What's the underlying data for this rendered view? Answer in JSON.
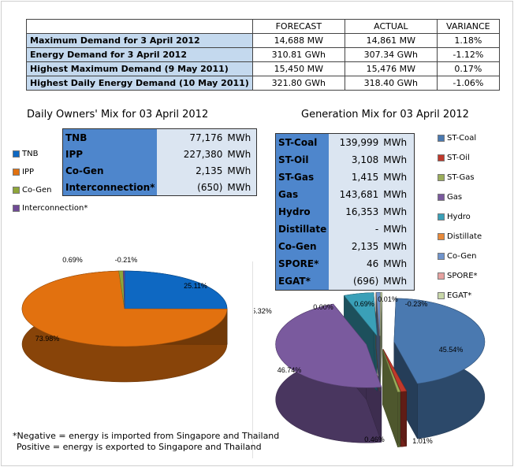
{
  "summary": {
    "headers": [
      "",
      "FORECAST",
      "ACTUAL",
      "VARIANCE"
    ],
    "rows": [
      {
        "label": "Maximum Demand for 3 April 2012",
        "forecast": "14,688  MW",
        "actual": "14,861  MW",
        "variance": "1.18%"
      },
      {
        "label": "Energy Demand for 3 April 2012",
        "forecast": "310.81  GWh",
        "actual": "307.34  GWh",
        "variance": "-1.12%"
      },
      {
        "label": "Highest Maximum Demand (9 May 2011)",
        "forecast": "15,450  MW",
        "actual": "15,476  MW",
        "variance": "0.17%"
      },
      {
        "label": "Highest Daily Energy Demand (10 May 2011)",
        "forecast": "321.80  GWh",
        "actual": "318.40  GWh",
        "variance": "-1.06%"
      }
    ]
  },
  "owners": {
    "title": "Daily Owners' Mix for 03 April 2012",
    "rows": [
      {
        "label": "TNB",
        "value": "77,176",
        "unit": "MWh"
      },
      {
        "label": "IPP",
        "value": "227,380",
        "unit": "MWh"
      },
      {
        "label": "Co-Gen",
        "value": "2,135",
        "unit": "MWh"
      },
      {
        "label": "Interconnection*",
        "value": "(650)",
        "unit": "MWh"
      }
    ],
    "legend": [
      "TNB",
      "IPP",
      "Co-Gen",
      "Interconnection*"
    ]
  },
  "generation": {
    "title": "Generation Mix for 03 April 2012",
    "rows": [
      {
        "label": "ST-Coal",
        "value": "139,999",
        "unit": "MWh"
      },
      {
        "label": "ST-Oil",
        "value": "3,108",
        "unit": "MWh"
      },
      {
        "label": "ST-Gas",
        "value": "1,415",
        "unit": "MWh"
      },
      {
        "label": "Gas",
        "value": "143,681",
        "unit": "MWh"
      },
      {
        "label": "Hydro",
        "value": "16,353",
        "unit": "MWh"
      },
      {
        "label": "Distillate",
        "value": "-",
        "unit": "MWh"
      },
      {
        "label": "Co-Gen",
        "value": "2,135",
        "unit": "MWh"
      },
      {
        "label": "SPORE*",
        "value": "46",
        "unit": "MWh"
      },
      {
        "label": "EGAT*",
        "value": "(696)",
        "unit": "MWh"
      }
    ],
    "legend": [
      "ST-Coal",
      "ST-Oil",
      "ST-Gas",
      "Gas",
      "Hydro",
      "Distillate",
      "Co-Gen",
      "SPORE*",
      "EGAT*"
    ]
  },
  "footnote": {
    "line1": "*Negative = energy is imported from Singapore and Thailand",
    "line2": "Positive = energy is exported to Singapore and Thailand"
  },
  "chart_data": [
    {
      "type": "pie",
      "title": "Daily Owners' Mix for 03 April 2012",
      "categories": [
        "TNB",
        "IPP",
        "Co-Gen",
        "Interconnection*"
      ],
      "values": [
        25.11,
        73.98,
        0.69,
        -0.21
      ],
      "labels": [
        "25.11%",
        "73.98%",
        "0.69%",
        "-0.21%"
      ],
      "colors": [
        "#0e68c2",
        "#e2710f",
        "#8fa63a",
        "#6f4a95"
      ],
      "legend_position": "left"
    },
    {
      "type": "pie",
      "title": "Generation Mix for 03 April 2012",
      "categories": [
        "ST-Coal",
        "ST-Oil",
        "ST-Gas",
        "Gas",
        "Hydro",
        "Distillate",
        "Co-Gen",
        "SPORE*",
        "EGAT*"
      ],
      "values": [
        45.54,
        1.01,
        0.46,
        46.74,
        5.32,
        0.0,
        0.69,
        0.01,
        -0.23
      ],
      "labels": [
        "45.54%",
        "1.01%",
        "0.46%",
        "46.74%",
        "5.32%",
        "0.00%",
        "0.69%",
        "0.01%",
        "-0.23%"
      ],
      "colors": [
        "#4a79b0",
        "#c0392b",
        "#9bad5a",
        "#7a5a9e",
        "#3aa0b8",
        "#e88a3a",
        "#6f94cc",
        "#e6a2a0",
        "#c8d7a8"
      ],
      "legend_position": "right"
    }
  ]
}
